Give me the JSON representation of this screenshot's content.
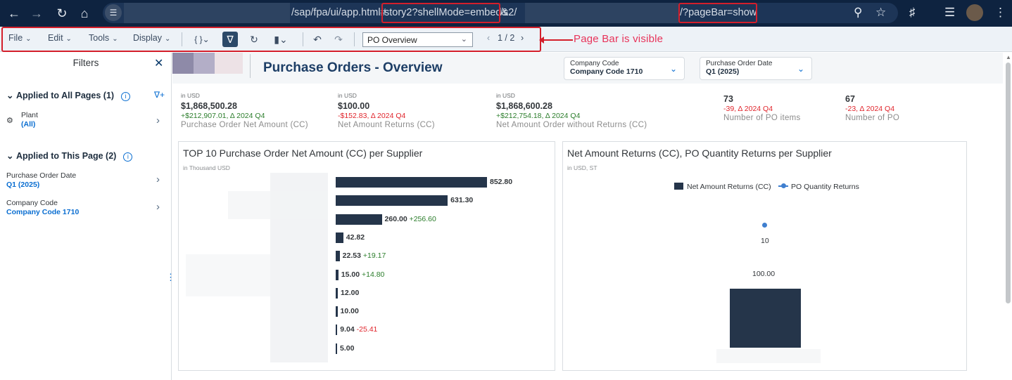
{
  "browser": {
    "url_segments": [
      "/sap/fpa/ui/app.html#",
      "story2?shellMode=embed&",
      "/s2/",
      "/?pageBar=show"
    ],
    "icons": [
      "back-arrow-icon",
      "forward-arrow-icon",
      "reload-icon",
      "home-icon",
      "site-settings-icon",
      "zoom-icon",
      "star-icon",
      "extensions-icon",
      "media-icon",
      "profile-avatar",
      "more-menu-icon"
    ]
  },
  "toolbar": {
    "file": "File",
    "edit": "Edit",
    "tools": "Tools",
    "display": "Display",
    "page_select": "PO Overview",
    "pager": "1 / 2"
  },
  "annotation": "Page Bar is visible",
  "filters_panel": {
    "title": "Filters",
    "all_pages": {
      "heading": "Applied to All Pages (1)",
      "items": [
        {
          "label": "Plant",
          "value": "(All)"
        }
      ]
    },
    "this_page": {
      "heading": "Applied to This Page (2)",
      "items": [
        {
          "label": "Purchase Order Date",
          "value": "Q1 (2025)"
        },
        {
          "label": "Company Code",
          "value": "Company Code 1710"
        }
      ]
    }
  },
  "header": {
    "title": "Purchase Orders - Overview",
    "company_code": {
      "label": "Company Code",
      "value": "Company Code 1710"
    },
    "po_date": {
      "label": "Purchase Order Date",
      "value": "Q1 (2025)"
    }
  },
  "kpis": [
    {
      "unit": "in USD",
      "value": "$1,868,500.28",
      "delta": "+$212,907.01, Δ 2024 Q4",
      "delta_sign": "pos",
      "name": "Purchase Order Net Amount (CC)"
    },
    {
      "unit": "in USD",
      "value": "$100.00",
      "delta": "-$152.83, Δ 2024 Q4",
      "delta_sign": "neg",
      "name": "Net Amount Returns (CC)"
    },
    {
      "unit": "in USD",
      "value": "$1,868,600.28",
      "delta": "+$212,754.18, Δ 2024 Q4",
      "delta_sign": "pos",
      "name": "Net Amount Order without Returns (CC)"
    },
    {
      "unit": "",
      "value": "73",
      "delta": "-39, Δ 2024 Q4",
      "delta_sign": "neg",
      "name": "Number of PO items"
    },
    {
      "unit": "",
      "value": "67",
      "delta": "-23, Δ 2024 Q4",
      "delta_sign": "neg",
      "name": "Number of PO"
    }
  ],
  "chart_data": [
    {
      "type": "bar",
      "title": "TOP 10 Purchase Order Net Amount (CC) per Supplier",
      "unit": "in Thousand USD",
      "orientation": "horizontal",
      "values": [
        852.8,
        631.3,
        260.0,
        42.82,
        22.53,
        15.0,
        12.0,
        10.0,
        9.04,
        5.0
      ],
      "labels": [
        "852.80",
        "631.30",
        "260.00",
        "42.82",
        "22.53",
        "15.00",
        "12.00",
        "10.00",
        "9.04",
        "5.00"
      ],
      "variances": [
        "",
        "",
        "+256.60",
        "",
        "+19.17",
        "+14.80",
        "",
        "",
        "-25.41",
        ""
      ]
    },
    {
      "type": "bar",
      "title": "Net Amount Returns (CC), PO Quantity Returns per Supplier",
      "unit": "in USD, ST",
      "series": [
        {
          "name": "Net Amount Returns (CC)",
          "values": [
            100.0
          ],
          "labels": [
            "100.00"
          ]
        },
        {
          "name": "PO Quantity Returns",
          "values": [
            10
          ],
          "labels": [
            "10"
          ]
        }
      ]
    }
  ],
  "colors": {
    "bar": "#25354a",
    "line": "#3f7fcf",
    "positive": "#2b7d2b",
    "negative": "#e0242b",
    "title": "#1d3e66"
  }
}
